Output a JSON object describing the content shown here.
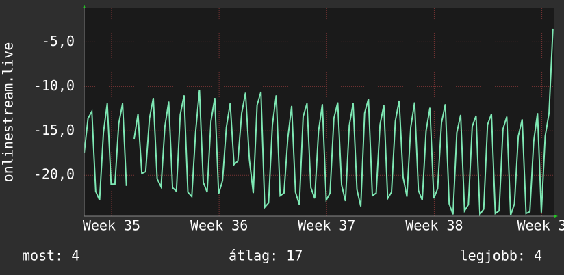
{
  "chart_data": {
    "type": "line",
    "y_label": "onlinestream.live",
    "x": [
      0,
      0.25,
      0.5,
      0.75,
      1,
      1.25,
      1.5,
      1.75,
      2,
      2.25,
      2.5,
      2.75,
      3,
      3.25,
      3.5,
      3.75,
      4,
      4.25,
      4.5,
      4.75,
      5,
      5.25,
      5.5,
      5.75,
      6,
      6.25,
      6.5,
      6.75,
      7,
      7.25,
      7.5,
      7.75,
      8,
      8.25,
      8.5,
      8.75,
      9,
      9.25,
      9.5,
      9.75,
      10,
      10.25,
      10.5,
      10.75,
      11,
      11.25,
      11.5,
      11.75,
      12,
      12.25,
      12.5,
      12.75,
      13,
      13.25,
      13.5,
      13.75,
      14,
      14.25,
      14.5,
      14.75,
      15,
      15.25,
      15.5,
      15.75,
      16,
      16.25,
      16.5,
      16.75,
      17,
      17.25,
      17.5,
      17.75,
      18,
      18.25,
      18.5,
      18.75,
      19,
      19.25,
      19.5,
      19.75,
      20,
      20.25,
      20.5,
      20.75,
      21,
      21.25,
      21.5,
      21.75,
      22,
      22.25,
      22.5,
      22.75,
      23,
      23.25,
      23.5,
      23.75,
      24,
      24.25,
      24.5,
      24.75,
      25,
      25.25,
      25.5,
      25.75,
      26,
      26.25,
      26.5,
      26.75,
      27,
      27.25,
      27.5,
      27.75,
      28,
      28.25,
      28.5,
      28.75,
      29,
      29.25,
      29.5,
      29.75,
      30,
      30.25,
      30.5
    ],
    "series": [
      {
        "color": "#7ee8b4",
        "values": [
          -17.5,
          -13.6,
          -12.8,
          -21.8,
          -22.8,
          -15.2,
          -11.9,
          -21.0,
          -21.0,
          -14.2,
          -11.9,
          -21.2,
          null,
          -15.9,
          -13.1,
          -19.8,
          -19.6,
          -13.6,
          -11.3,
          -20.4,
          -21.3,
          -14.5,
          -11.7,
          -21.4,
          -21.8,
          -13.2,
          -11.0,
          -21.9,
          -22.4,
          -15.1,
          -10.4,
          -20.8,
          -21.9,
          -13.9,
          -11.3,
          -22.1,
          -20.6,
          -14.6,
          -11.9,
          -18.8,
          -18.4,
          -13.0,
          -10.7,
          -18.2,
          -22.0,
          -12.1,
          -10.6,
          -23.6,
          -23.1,
          -14.3,
          -11.0,
          -22.3,
          -22.0,
          -15.8,
          -12.2,
          -21.9,
          -23.3,
          -13.4,
          -11.9,
          -21.4,
          -22.6,
          -15.0,
          -12.0,
          -22.8,
          -22.0,
          -13.6,
          -11.8,
          -21.1,
          -22.9,
          -14.4,
          -11.9,
          -21.6,
          -23.5,
          -13.0,
          -11.4,
          -22.3,
          -22.0,
          -14.3,
          -12.1,
          -22.6,
          -21.9,
          -13.9,
          -11.6,
          -20.2,
          -22.4,
          -14.6,
          -11.8,
          -21.7,
          -22.8,
          -15.0,
          -12.4,
          -22.6,
          -21.5,
          -14.1,
          -12.0,
          -23.2,
          -24.4,
          -15.2,
          -13.2,
          -24.0,
          -23.3,
          -14.5,
          -13.3,
          -24.4,
          -23.8,
          -14.3,
          -13.1,
          -24.3,
          -24.0,
          -14.8,
          -13.4,
          -24.5,
          -23.2,
          -15.6,
          -13.7,
          -24.3,
          -24.1,
          -16.2,
          -13.0,
          -24.2,
          -15.6,
          -13.0,
          -3.5
        ]
      }
    ],
    "xlim": [
      0,
      30.6
    ],
    "xticks": [
      {
        "value": 1.78,
        "label": "Week 35"
      },
      {
        "value": 8.78,
        "label": "Week 36"
      },
      {
        "value": 15.78,
        "label": "Week 37"
      },
      {
        "value": 22.78,
        "label": "Week 38"
      },
      {
        "value": 29.78,
        "label": "Week 3"
      }
    ],
    "ylim": [
      -24.6,
      -1.2
    ],
    "yticks": [
      {
        "value": -20,
        "label": "-20,0"
      },
      {
        "value": -15,
        "label": "-15,0"
      },
      {
        "value": -10,
        "label": "-10,0"
      },
      {
        "value": -5,
        "label": "-5,0"
      }
    ],
    "grid": true,
    "footer": {
      "current": "most: 4",
      "average": "átlag: 17",
      "best": "legjobb: 4"
    }
  }
}
